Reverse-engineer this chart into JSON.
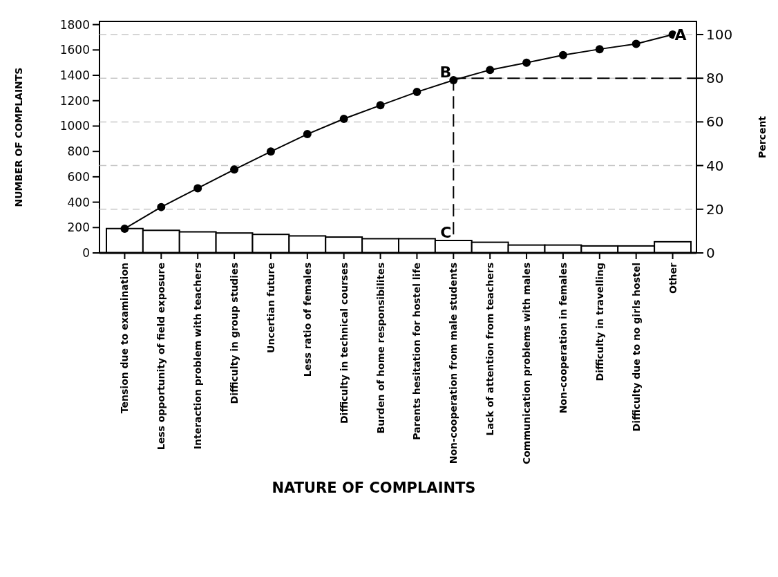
{
  "chart_data": {
    "type": "bar",
    "xlabel": "NATURE OF COMPLAINTS",
    "ylabel": "NUMBER OF COMPLAINTS",
    "y2label": "Percent",
    "categories": [
      "Tension due to examination",
      "Less opportunity of field exposure",
      "Interaction problem with teachers",
      "Difficulty in group studies",
      "Uncertian future",
      "Less ratio of females",
      "Difficulty in technical courses",
      "Burden of home responsibilites",
      "Parents hesitation for  hostel life",
      "Non-cooperation from male students",
      "Lack  of attention from teachers",
      "Communication problems with males",
      "Non-cooperation in females",
      "Difficulty in travelling",
      "Difficulty due to no girls hostel",
      "Other"
    ],
    "series": [
      {
        "color": "#ffffff",
        "values": [
          192,
          178,
          166,
          157,
          146,
          134,
          125,
          112,
          112,
          98,
          84,
          62,
          62,
          55,
          55,
          88
        ]
      },
      {
        "type": "line",
        "axis": "y2",
        "color": "#000000",
        "marker": "circle",
        "line_style": "solid",
        "values": [
          11.1,
          21.0,
          29.6,
          38.2,
          46.4,
          54.4,
          61.4,
          67.6,
          73.7,
          79.1,
          83.8,
          87.1,
          90.6,
          93.3,
          95.7,
          100
        ]
      }
    ],
    "ylim": [
      0,
      1825
    ],
    "yticks": [
      0,
      200,
      400,
      600,
      800,
      1000,
      1200,
      1400,
      1600,
      1800
    ],
    "y2lim": [
      0,
      106
    ],
    "y2ticks": [
      0,
      20,
      40,
      60,
      80,
      100
    ],
    "grid": true,
    "ref_lines": [
      {
        "axis": "y2",
        "value": 80,
        "color": "#000000",
        "line_style": "dashed"
      },
      {
        "axis": "x",
        "value": "Non-cooperation from male students",
        "color": "#000000",
        "line_style": "dashed"
      }
    ],
    "annotations": [
      {
        "text": "A",
        "x": "Other",
        "y": 1722
      },
      {
        "text": "B",
        "x": "Non-cooperation from male students",
        "y": 1362
      },
      {
        "text": "C",
        "x": "Non-cooperation from male students",
        "y": 98
      }
    ]
  }
}
